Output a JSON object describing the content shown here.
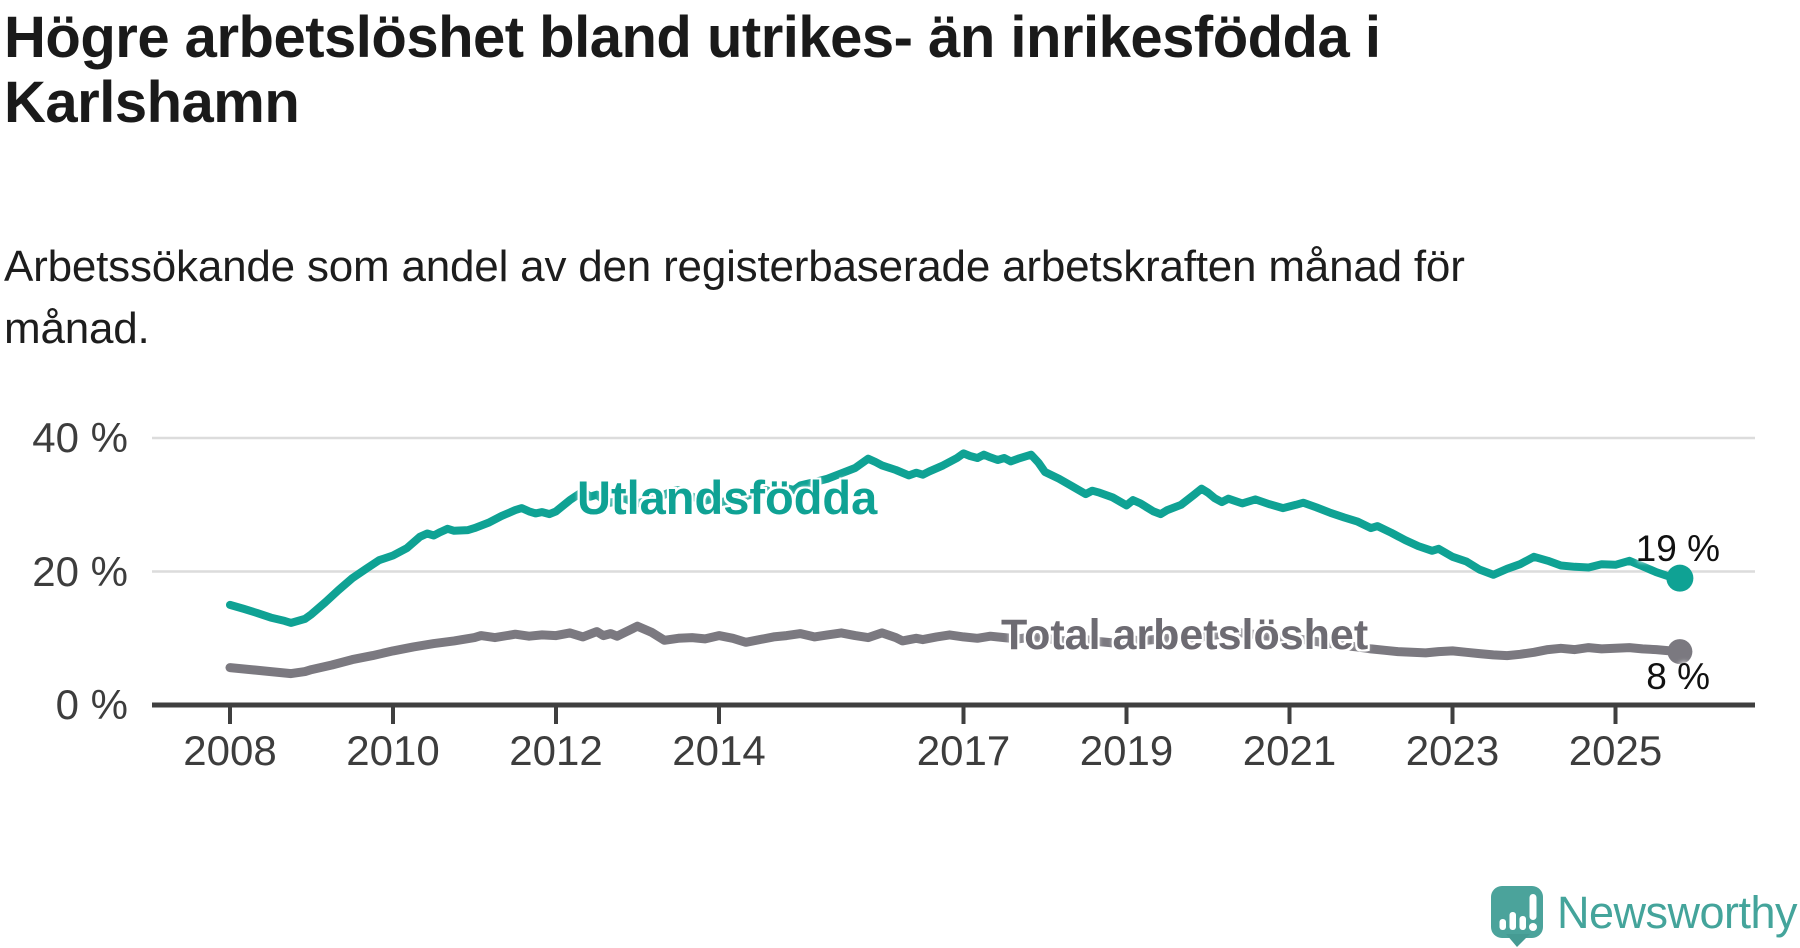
{
  "header": {
    "title_lines": [
      "Högre arbetslöshet bland utrikes- än inrikesfödda i",
      "Karlshamn"
    ],
    "subtitle_lines": [
      "Arbetssökande som andel av den registerbaserade arbetskraften månad för",
      "månad."
    ]
  },
  "chart_data": {
    "type": "line",
    "unit": "%",
    "description": "Arbetssökande som andel av den registerbaserade arbetskraften månad för månad, Karlshamn",
    "grid": "horizontal-only",
    "x_range_years": [
      2008.0,
      2025.79
    ],
    "ylim": [
      0,
      42
    ],
    "y_axis": {
      "ticks": [
        {
          "value": 0,
          "label": "0 %"
        },
        {
          "value": 20,
          "label": "20 %"
        },
        {
          "value": 40,
          "label": "40 %"
        }
      ]
    },
    "x_axis": {
      "ticks": [
        {
          "year": 2008,
          "label": "2008"
        },
        {
          "year": 2010,
          "label": "2010"
        },
        {
          "year": 2012,
          "label": "2012"
        },
        {
          "year": 2014,
          "label": "2014"
        },
        {
          "year": 2017,
          "label": "2017"
        },
        {
          "year": 2019,
          "label": "2019"
        },
        {
          "year": 2021,
          "label": "2021"
        },
        {
          "year": 2023,
          "label": "2023"
        },
        {
          "year": 2025,
          "label": "2025"
        }
      ]
    },
    "series": [
      {
        "name": "Total arbetslöshet",
        "color": "#7b7980",
        "line_width": 9,
        "end_value": 8,
        "end_label": "8 %",
        "points": [
          [
            2008.0,
            5.6
          ],
          [
            2008.25,
            5.3
          ],
          [
            2008.5,
            5.0
          ],
          [
            2008.75,
            4.7
          ],
          [
            2008.92,
            5.0
          ],
          [
            2009.0,
            5.3
          ],
          [
            2009.25,
            6.0
          ],
          [
            2009.5,
            6.8
          ],
          [
            2009.75,
            7.4
          ],
          [
            2010.0,
            8.1
          ],
          [
            2010.25,
            8.7
          ],
          [
            2010.5,
            9.2
          ],
          [
            2010.75,
            9.6
          ],
          [
            2011.0,
            10.1
          ],
          [
            2011.08,
            10.4
          ],
          [
            2011.25,
            10.1
          ],
          [
            2011.5,
            10.6
          ],
          [
            2011.67,
            10.3
          ],
          [
            2011.83,
            10.5
          ],
          [
            2012.0,
            10.4
          ],
          [
            2012.17,
            10.8
          ],
          [
            2012.33,
            10.2
          ],
          [
            2012.5,
            11.0
          ],
          [
            2012.58,
            10.4
          ],
          [
            2012.67,
            10.7
          ],
          [
            2012.75,
            10.3
          ],
          [
            2013.0,
            11.8
          ],
          [
            2013.17,
            10.9
          ],
          [
            2013.33,
            9.7
          ],
          [
            2013.5,
            10.0
          ],
          [
            2013.67,
            10.1
          ],
          [
            2013.83,
            9.9
          ],
          [
            2014.0,
            10.4
          ],
          [
            2014.17,
            10.0
          ],
          [
            2014.33,
            9.4
          ],
          [
            2014.5,
            9.8
          ],
          [
            2014.67,
            10.2
          ],
          [
            2014.83,
            10.4
          ],
          [
            2015.0,
            10.7
          ],
          [
            2015.17,
            10.2
          ],
          [
            2015.33,
            10.5
          ],
          [
            2015.5,
            10.8
          ],
          [
            2015.67,
            10.4
          ],
          [
            2015.83,
            10.1
          ],
          [
            2016.0,
            10.8
          ],
          [
            2016.17,
            10.1
          ],
          [
            2016.25,
            9.6
          ],
          [
            2016.42,
            10.0
          ],
          [
            2016.5,
            9.8
          ],
          [
            2016.67,
            10.2
          ],
          [
            2016.83,
            10.5
          ],
          [
            2017.0,
            10.2
          ],
          [
            2017.17,
            10.0
          ],
          [
            2017.33,
            10.3
          ],
          [
            2017.5,
            10.1
          ],
          [
            2017.67,
            9.9
          ],
          [
            2017.83,
            10.2
          ],
          [
            2018.0,
            10.0
          ],
          [
            2018.17,
            9.7
          ],
          [
            2018.33,
            9.5
          ],
          [
            2018.5,
            9.8
          ],
          [
            2018.67,
            9.5
          ],
          [
            2018.83,
            9.3
          ],
          [
            2019.0,
            9.9
          ],
          [
            2019.17,
            9.6
          ],
          [
            2019.33,
            9.8
          ],
          [
            2019.5,
            10.0
          ],
          [
            2019.67,
            9.8
          ],
          [
            2019.83,
            10.1
          ],
          [
            2020.0,
            10.3
          ],
          [
            2020.17,
            10.6
          ],
          [
            2020.33,
            10.9
          ],
          [
            2020.5,
            10.7
          ],
          [
            2020.67,
            10.4
          ],
          [
            2020.83,
            10.2
          ],
          [
            2021.0,
            10.0
          ],
          [
            2021.17,
            9.8
          ],
          [
            2021.33,
            9.5
          ],
          [
            2021.5,
            9.2
          ],
          [
            2021.67,
            8.9
          ],
          [
            2021.83,
            8.7
          ],
          [
            2022.0,
            8.4
          ],
          [
            2022.17,
            8.2
          ],
          [
            2022.33,
            8.0
          ],
          [
            2022.5,
            7.9
          ],
          [
            2022.67,
            7.8
          ],
          [
            2022.83,
            8.0
          ],
          [
            2023.0,
            8.1
          ],
          [
            2023.17,
            7.9
          ],
          [
            2023.33,
            7.7
          ],
          [
            2023.5,
            7.5
          ],
          [
            2023.67,
            7.4
          ],
          [
            2023.83,
            7.6
          ],
          [
            2024.0,
            7.9
          ],
          [
            2024.17,
            8.3
          ],
          [
            2024.33,
            8.5
          ],
          [
            2024.5,
            8.3
          ],
          [
            2024.67,
            8.6
          ],
          [
            2024.83,
            8.4
          ],
          [
            2025.0,
            8.5
          ],
          [
            2025.17,
            8.6
          ],
          [
            2025.33,
            8.4
          ],
          [
            2025.5,
            8.3
          ],
          [
            2025.67,
            8.1
          ],
          [
            2025.79,
            8.0
          ]
        ]
      },
      {
        "name": "Utlandsfödda",
        "color": "#0fa294",
        "line_width": 8,
        "end_value": 19,
        "end_label": "19 %",
        "points": [
          [
            2008.0,
            15.0
          ],
          [
            2008.17,
            14.4
          ],
          [
            2008.33,
            13.8
          ],
          [
            2008.5,
            13.1
          ],
          [
            2008.67,
            12.6
          ],
          [
            2008.75,
            12.3
          ],
          [
            2008.92,
            12.9
          ],
          [
            2009.0,
            13.6
          ],
          [
            2009.17,
            15.4
          ],
          [
            2009.33,
            17.2
          ],
          [
            2009.5,
            19.0
          ],
          [
            2009.67,
            20.4
          ],
          [
            2009.83,
            21.7
          ],
          [
            2010.0,
            22.4
          ],
          [
            2010.17,
            23.5
          ],
          [
            2010.33,
            25.2
          ],
          [
            2010.42,
            25.7
          ],
          [
            2010.5,
            25.4
          ],
          [
            2010.58,
            25.9
          ],
          [
            2010.67,
            26.4
          ],
          [
            2010.75,
            26.1
          ],
          [
            2010.92,
            26.2
          ],
          [
            2011.0,
            26.5
          ],
          [
            2011.17,
            27.3
          ],
          [
            2011.33,
            28.3
          ],
          [
            2011.5,
            29.2
          ],
          [
            2011.58,
            29.5
          ],
          [
            2011.67,
            29.0
          ],
          [
            2011.75,
            28.7
          ],
          [
            2011.83,
            28.9
          ],
          [
            2011.92,
            28.6
          ],
          [
            2012.0,
            29.0
          ],
          [
            2012.17,
            30.7
          ],
          [
            2012.33,
            32.0
          ],
          [
            2012.42,
            31.2
          ],
          [
            2012.5,
            31.5
          ],
          [
            2012.58,
            30.8
          ],
          [
            2012.67,
            30.3
          ],
          [
            2012.75,
            30.6
          ],
          [
            2012.83,
            31.0
          ],
          [
            2012.92,
            30.5
          ],
          [
            2013.0,
            30.2
          ],
          [
            2013.17,
            30.8
          ],
          [
            2013.33,
            31.5
          ],
          [
            2013.42,
            32.0
          ],
          [
            2013.5,
            32.2
          ],
          [
            2013.58,
            31.7
          ],
          [
            2013.67,
            31.2
          ],
          [
            2013.83,
            30.6
          ],
          [
            2013.92,
            30.9
          ],
          [
            2014.0,
            30.3
          ],
          [
            2014.17,
            30.8
          ],
          [
            2014.33,
            31.3
          ],
          [
            2014.5,
            31.9
          ],
          [
            2014.58,
            32.2
          ],
          [
            2014.67,
            31.8
          ],
          [
            2014.75,
            32.1
          ],
          [
            2014.83,
            32.5
          ],
          [
            2014.92,
            32.2
          ],
          [
            2015.0,
            32.9
          ],
          [
            2015.17,
            33.4
          ],
          [
            2015.33,
            33.9
          ],
          [
            2015.5,
            34.7
          ],
          [
            2015.67,
            35.5
          ],
          [
            2015.83,
            36.9
          ],
          [
            2015.92,
            36.4
          ],
          [
            2016.0,
            35.9
          ],
          [
            2016.17,
            35.2
          ],
          [
            2016.33,
            34.4
          ],
          [
            2016.42,
            34.8
          ],
          [
            2016.5,
            34.5
          ],
          [
            2016.58,
            35.0
          ],
          [
            2016.75,
            35.9
          ],
          [
            2016.92,
            37.0
          ],
          [
            2017.0,
            37.7
          ],
          [
            2017.08,
            37.3
          ],
          [
            2017.17,
            37.0
          ],
          [
            2017.25,
            37.5
          ],
          [
            2017.33,
            37.1
          ],
          [
            2017.42,
            36.7
          ],
          [
            2017.5,
            37.0
          ],
          [
            2017.58,
            36.5
          ],
          [
            2017.67,
            36.9
          ],
          [
            2017.75,
            37.2
          ],
          [
            2017.83,
            37.5
          ],
          [
            2017.92,
            36.3
          ],
          [
            2018.0,
            34.9
          ],
          [
            2018.17,
            33.9
          ],
          [
            2018.33,
            32.8
          ],
          [
            2018.5,
            31.6
          ],
          [
            2018.58,
            32.1
          ],
          [
            2018.67,
            31.8
          ],
          [
            2018.83,
            31.1
          ],
          [
            2019.0,
            29.9
          ],
          [
            2019.08,
            30.7
          ],
          [
            2019.17,
            30.2
          ],
          [
            2019.33,
            29.0
          ],
          [
            2019.42,
            28.6
          ],
          [
            2019.5,
            29.2
          ],
          [
            2019.67,
            30.0
          ],
          [
            2019.83,
            31.5
          ],
          [
            2019.92,
            32.4
          ],
          [
            2020.0,
            31.8
          ],
          [
            2020.08,
            31.0
          ],
          [
            2020.17,
            30.4
          ],
          [
            2020.25,
            30.9
          ],
          [
            2020.42,
            30.2
          ],
          [
            2020.58,
            30.8
          ],
          [
            2020.75,
            30.1
          ],
          [
            2020.92,
            29.5
          ],
          [
            2021.08,
            30.0
          ],
          [
            2021.17,
            30.3
          ],
          [
            2021.33,
            29.6
          ],
          [
            2021.5,
            28.8
          ],
          [
            2021.67,
            28.1
          ],
          [
            2021.83,
            27.5
          ],
          [
            2022.0,
            26.5
          ],
          [
            2022.08,
            26.8
          ],
          [
            2022.25,
            25.8
          ],
          [
            2022.42,
            24.7
          ],
          [
            2022.58,
            23.8
          ],
          [
            2022.75,
            23.1
          ],
          [
            2022.83,
            23.4
          ],
          [
            2023.0,
            22.2
          ],
          [
            2023.17,
            21.5
          ],
          [
            2023.33,
            20.3
          ],
          [
            2023.5,
            19.5
          ],
          [
            2023.67,
            20.4
          ],
          [
            2023.83,
            21.1
          ],
          [
            2024.0,
            22.2
          ],
          [
            2024.17,
            21.6
          ],
          [
            2024.33,
            20.9
          ],
          [
            2024.5,
            20.7
          ],
          [
            2024.67,
            20.6
          ],
          [
            2024.83,
            21.1
          ],
          [
            2025.0,
            21.0
          ],
          [
            2025.17,
            21.6
          ],
          [
            2025.33,
            20.8
          ],
          [
            2025.5,
            19.9
          ],
          [
            2025.67,
            19.2
          ],
          [
            2025.79,
            19.0
          ]
        ]
      }
    ],
    "series_annotations": [
      {
        "text": "Utlandsfödda",
        "color": "#0fa294"
      },
      {
        "text": "Total arbetslöshet",
        "color": "#6d6b72"
      }
    ],
    "end_point_markers": true
  },
  "footer": {
    "brand": "Newsworthy",
    "brand_color": "#44a49b",
    "logo_color": "#4ba39b"
  },
  "colors": {
    "background": "#ffffff",
    "gridline": "#dcdcdc",
    "axis": "#3f3f3f",
    "axis_text": "#3d3d3d",
    "title_text": "#1a1a1a"
  }
}
